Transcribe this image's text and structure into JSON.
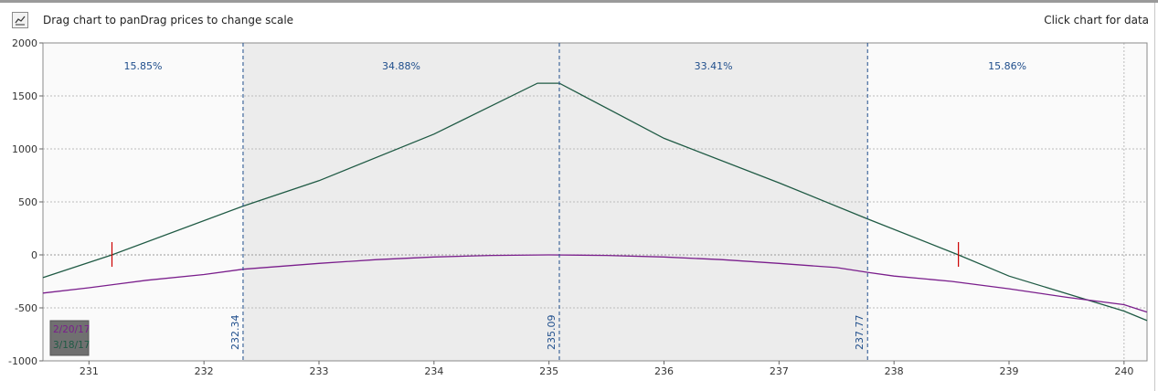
{
  "toolbar": {
    "chart_icon": "line-chart-icon",
    "hint": "Drag chart to panDrag prices to change scale",
    "click_hint": "Click chart for data"
  },
  "chart_data": {
    "type": "line",
    "xlim": [
      230.6,
      240.2
    ],
    "ylim": [
      -1000,
      2000
    ],
    "x_ticks": [
      231,
      232,
      233,
      234,
      235,
      236,
      237,
      238,
      239,
      240
    ],
    "y_ticks": [
      2000,
      1500,
      1000,
      500,
      0,
      -500,
      -1000
    ],
    "series": [
      {
        "name": "3/18/17",
        "color": "#1f5a44",
        "points": [
          [
            230.6,
            -215
          ],
          [
            231.2,
            0
          ],
          [
            232.34,
            460
          ],
          [
            233,
            700
          ],
          [
            234,
            1140
          ],
          [
            234.9,
            1620
          ],
          [
            235.09,
            1620
          ],
          [
            236,
            1100
          ],
          [
            237,
            680
          ],
          [
            237.77,
            340
          ],
          [
            238.56,
            0
          ],
          [
            239,
            -200
          ],
          [
            240,
            -530
          ],
          [
            240.2,
            -620
          ]
        ]
      },
      {
        "name": "2/20/17",
        "color": "#7a1e8c",
        "points": [
          [
            230.6,
            -360
          ],
          [
            231,
            -310
          ],
          [
            231.5,
            -240
          ],
          [
            232,
            -185
          ],
          [
            232.34,
            -135
          ],
          [
            233,
            -80
          ],
          [
            233.5,
            -45
          ],
          [
            234,
            -20
          ],
          [
            234.5,
            -5
          ],
          [
            235,
            0
          ],
          [
            235.5,
            -5
          ],
          [
            236,
            -20
          ],
          [
            236.5,
            -45
          ],
          [
            237,
            -80
          ],
          [
            237.5,
            -120
          ],
          [
            237.77,
            -165
          ],
          [
            238,
            -200
          ],
          [
            238.5,
            -250
          ],
          [
            239,
            -320
          ],
          [
            239.5,
            -400
          ],
          [
            240,
            -470
          ],
          [
            240.2,
            -540
          ]
        ]
      }
    ],
    "vlines": [
      {
        "x": 232.34,
        "label": "232.34"
      },
      {
        "x": 235.09,
        "label": "235.09"
      },
      {
        "x": 237.77,
        "label": "237.77"
      }
    ],
    "shaded_range": [
      232.34,
      237.77
    ],
    "region_probabilities": [
      {
        "from": 230.6,
        "to": 232.34,
        "label": "15.85%"
      },
      {
        "from": 232.34,
        "to": 235.09,
        "label": "34.88%"
      },
      {
        "from": 235.09,
        "to": 237.77,
        "label": "33.41%"
      },
      {
        "from": 237.77,
        "to": 240.2,
        "label": "15.86%"
      }
    ],
    "breakeven_markers": [
      231.2,
      238.56
    ],
    "legend": {
      "placement": "bottom-left",
      "entries": [
        {
          "label": "2/20/17",
          "color": "#7a1e8c"
        },
        {
          "label": "3/18/17",
          "color": "#1f5a44"
        }
      ]
    },
    "colors": {
      "plot_bg": "#fafafa",
      "shade": "#ececec",
      "vline": "#1f4e8c",
      "grid": "#bcbcbc",
      "marker": "#cc0000",
      "label": "#1f4e8c",
      "legend_bg": "#707070"
    }
  }
}
